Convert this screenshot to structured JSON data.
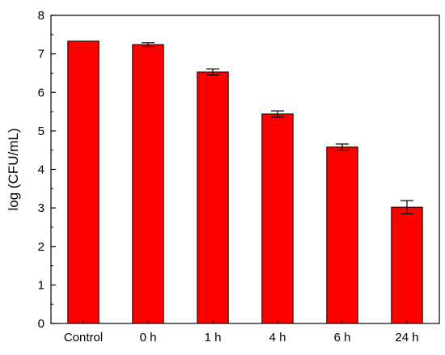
{
  "chart_data": {
    "type": "bar",
    "title": "",
    "xlabel": "",
    "ylabel": "log (CFU/mL)",
    "categories": [
      "Control",
      "0 h",
      "1 h",
      "4 h",
      "6 h",
      "24 h"
    ],
    "values": [
      7.33,
      7.24,
      6.53,
      5.44,
      4.58,
      3.02
    ],
    "errors": [
      0.0,
      0.05,
      0.08,
      0.08,
      0.08,
      0.17
    ],
    "ylim": [
      0,
      8
    ],
    "yticks": [
      "0",
      "1",
      "2",
      "3",
      "4",
      "5",
      "6",
      "7",
      "8"
    ],
    "bar_color": "#ff0000",
    "grid": false,
    "legend": "none"
  }
}
